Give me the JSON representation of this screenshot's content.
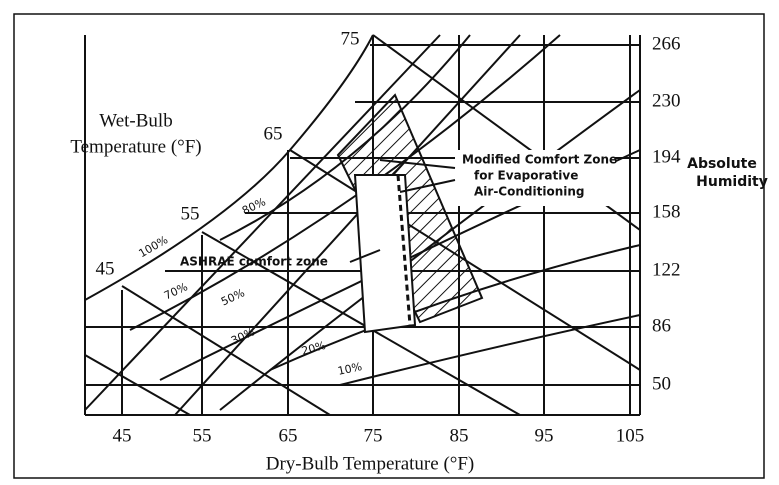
{
  "left_axis": {
    "title": [
      "Wet-Bulb",
      "Temperature (°F)"
    ],
    "labels": [
      "75",
      "65",
      "55",
      "45"
    ]
  },
  "right_axis": {
    "title": [
      "Absolute",
      "Humidity"
    ],
    "labels": [
      "266",
      "230",
      "194",
      "158",
      "122",
      "86",
      "50"
    ]
  },
  "bottom_axis": {
    "title": "Dry-Bulb Temperature (°F)",
    "labels": [
      "45",
      "55",
      "65",
      "75",
      "85",
      "95",
      "105"
    ]
  },
  "rh_labels": [
    "100%",
    "80%",
    "70%",
    "50%",
    "30%",
    "20%",
    "10%"
  ],
  "annotations": {
    "modified_zone": [
      "Modified Comfort Zone",
      "for Evaporative",
      "Air-Conditioning"
    ],
    "ashrae_zone": "ASHRAE comfort zone"
  }
}
